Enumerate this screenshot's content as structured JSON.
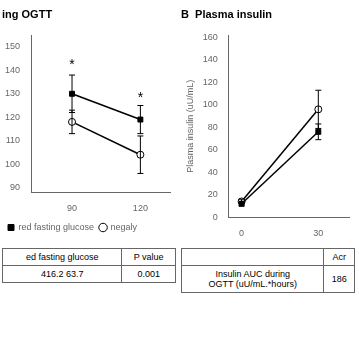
{
  "chart_data": [
    {
      "type": "line",
      "title": "ing OGTT",
      "x": [
        90,
        120
      ],
      "xlim": [
        72,
        133
      ],
      "xticks": [
        90,
        120
      ],
      "ylim": [
        88,
        155
      ],
      "yticks": [
        90,
        100,
        110,
        120,
        130,
        140,
        150
      ],
      "grid": false,
      "legend": "lower left",
      "series": [
        {
          "name": "red fasting glucose",
          "color": "#000000",
          "marker": "square",
          "values": [
            130,
            119
          ],
          "yerr": [
            8,
            6
          ]
        },
        {
          "name": "negaly",
          "color": "#000000",
          "marker": "circle-open",
          "values": [
            118,
            104
          ],
          "yerr": [
            5,
            8
          ]
        }
      ],
      "annotations": [
        {
          "x": 90,
          "y": 141,
          "text": "*"
        },
        {
          "x": 120,
          "y": 127,
          "text": "*"
        }
      ],
      "table": {
        "header": [
          "ed fasting glucose",
          "P value"
        ],
        "rows": [
          [
            "416.2 63.7",
            "0.001"
          ]
        ]
      }
    },
    {
      "type": "line",
      "title": "B  Plasma insulin",
      "ylabel": "Plasma insulin (uU/mL)",
      "x": [
        0,
        30
      ],
      "xlim": [
        -5,
        42
      ],
      "xticks": [
        0,
        30
      ],
      "ylim": [
        0,
        162
      ],
      "yticks": [
        0,
        20,
        40,
        60,
        80,
        100,
        120,
        140,
        160
      ],
      "grid": false,
      "series": [
        {
          "color": "#000000",
          "marker": "square",
          "values": [
            12,
            76
          ],
          "yerr": [
            2,
            7
          ]
        },
        {
          "color": "#000000",
          "marker": "circle-open",
          "values": [
            14,
            96
          ],
          "yerr": [
            2,
            17
          ]
        }
      ],
      "table": {
        "header": [
          null,
          "Acr"
        ],
        "rows": [
          [
            "Insulin AUC during\nOGTT (uU/mL.*hours)",
            "186"
          ]
        ]
      }
    }
  ]
}
